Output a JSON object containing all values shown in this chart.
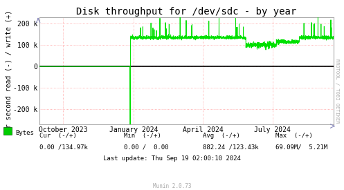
{
  "title": "Disk throughput for /dev/sdc - by year",
  "ylabel": "Pr second read (-) / write (+)",
  "background_color": "#ffffff",
  "plot_bg_color": "#ffffff",
  "line_color": "#00e000",
  "zero_line_color": "#000000",
  "ylim": [
    -270000,
    230000
  ],
  "yticks": [
    -200000,
    -100000,
    0,
    100000,
    200000
  ],
  "ytick_labels": [
    "-200 k",
    "-100 k",
    "0",
    "100 k",
    "200 k"
  ],
  "xstart_ts": 1693440000,
  "xend_ts": 1726704000,
  "x_spike_ts": 1703635200,
  "spike_bottom": -270000,
  "flat_start_ts": 1703721600,
  "flat_value": 134970,
  "legend_label": "Bytes",
  "legend_color": "#00cc00",
  "rrdtool_label": "RRDTOOL / TOBI OETIKER",
  "title_fontsize": 10,
  "axis_fontsize": 7,
  "tick_fontsize": 7,
  "footer_fontsize": 6.5,
  "x_tick_dates": [
    "October 2023",
    "January 2024",
    "April 2024",
    "July 2024"
  ],
  "x_tick_ts": [
    1696118400,
    1704067200,
    1711929600,
    1719792000
  ],
  "footer_labels": [
    "Cur  (-/+)",
    "Min  (-/+)",
    "Avg  (-/+)",
    "Max  (-/+)"
  ],
  "footer_values": [
    "0.00 /134.97k",
    "0.00 /  0.00",
    "882.24 /123.43k",
    "69.09M/  5.21M"
  ],
  "last_update": "Last update: Thu Sep 19 02:00:10 2024",
  "munin_version": "Munin 2.0.73"
}
